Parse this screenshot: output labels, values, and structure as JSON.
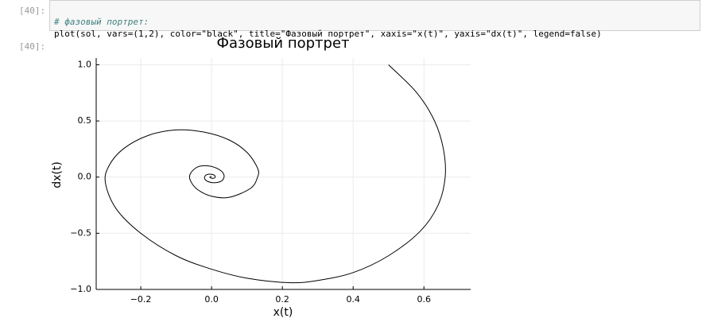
{
  "input_prompt": "[40]:",
  "code": [
    "# фазовый портрет:",
    "plot(sol, vars=(1,2), color=\"black\", title=\"Фазовый портрет\", xaxis=\"x(t)\", yaxis=\"dx(t)\", legend=false)"
  ],
  "output_prompt": "[40]:",
  "chart_data": {
    "type": "line",
    "title": "Фазовый портрет",
    "x_label": "x(t)",
    "y_label": "dx(t)",
    "x": [
      0.5,
      0.58,
      0.63,
      0.655,
      0.66,
      0.64,
      0.59,
      0.5,
      0.4,
      0.3,
      0.22,
      0.1,
      0.0,
      -0.1,
      -0.2,
      -0.27,
      -0.3,
      -0.29,
      -0.25,
      -0.18,
      -0.1,
      -0.02,
      0.05,
      0.1,
      0.13,
      0.13,
      0.11,
      0.05,
      0.0,
      -0.04,
      -0.06,
      -0.06,
      -0.04,
      -0.01,
      0.02,
      0.035,
      0.03,
      0.01,
      -0.01,
      -0.02,
      -0.015,
      0,
      0.01,
      0.008,
      0,
      -0.005,
      0
    ],
    "series": [
      {
        "color": "#000000",
        "values": [
          1.0,
          0.75,
          0.5,
          0.25,
          0.0,
          -0.25,
          -0.48,
          -0.7,
          -0.85,
          -0.92,
          -0.94,
          -0.9,
          -0.82,
          -0.7,
          -0.5,
          -0.28,
          -0.05,
          0.1,
          0.25,
          0.37,
          0.42,
          0.4,
          0.33,
          0.22,
          0.08,
          0.0,
          -0.1,
          -0.18,
          -0.17,
          -0.11,
          -0.03,
          0.03,
          0.09,
          0.1,
          0.07,
          0.02,
          -0.03,
          -0.05,
          -0.04,
          -0.01,
          0.02,
          0.025,
          0.01,
          -0.008,
          -0.01,
          0,
          0.005
        ]
      }
    ],
    "xlim": [
      -0.326,
      0.732
    ],
    "ylim": [
      -1.0,
      1.06
    ],
    "xticks": [
      {
        "value": -0.2,
        "label": "−0.2"
      },
      {
        "value": 0,
        "label": "0.0"
      },
      {
        "value": 0.2,
        "label": "0.2"
      },
      {
        "value": 0.4,
        "label": "0.4"
      },
      {
        "value": 0.6,
        "label": "0.6"
      }
    ],
    "yticks": [
      {
        "value": -1.0,
        "label": "−1.0"
      },
      {
        "value": -0.5,
        "label": "−0.5"
      },
      {
        "value": 0,
        "label": "0.0"
      },
      {
        "value": 0.5,
        "label": "0.5"
      },
      {
        "value": 1.0,
        "label": "1.0"
      }
    ],
    "grid": true,
    "legend": false
  }
}
